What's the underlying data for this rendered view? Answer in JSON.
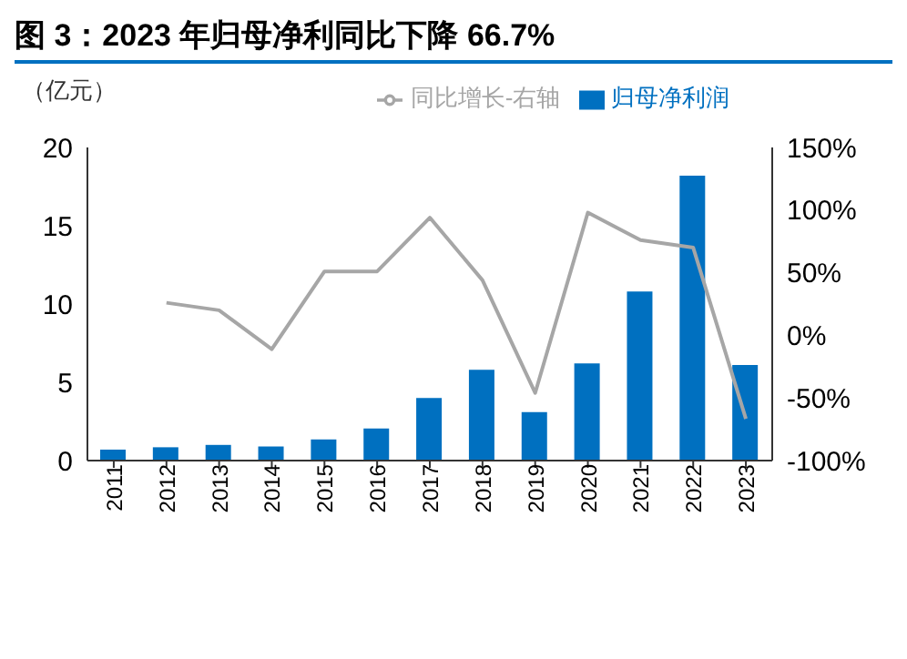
{
  "chart_data": {
    "type": "bar",
    "title": "图 3：2023 年归母净利同比下降 66.7%",
    "ylabel": "（亿元）",
    "categories": [
      "2011",
      "2012",
      "2013",
      "2014",
      "2015",
      "2016",
      "2017",
      "2018",
      "2019",
      "2020",
      "2021",
      "2022",
      "2023"
    ],
    "series": [
      {
        "name": "归母净利润",
        "color": "#0070c0",
        "values": [
          0.7,
          0.85,
          1.0,
          0.9,
          1.35,
          2.05,
          4.0,
          5.8,
          3.1,
          6.2,
          10.8,
          18.2,
          6.1
        ]
      },
      {
        "name": "同比增长-右轴",
        "type": "line",
        "axis": "y2",
        "color": "#a6a6a6",
        "values": [
          null,
          26,
          20,
          -11,
          51,
          51,
          94,
          44,
          -46,
          98,
          76,
          70,
          -66.7
        ]
      }
    ],
    "ylim": [
      0,
      20
    ],
    "yticks": [
      0,
      5,
      10,
      15,
      20
    ],
    "y2lim": [
      -100,
      150
    ],
    "y2ticks": [
      {
        "value": -100,
        "label": "-100%"
      },
      {
        "value": -50,
        "label": "-50%"
      },
      {
        "value": 0,
        "label": "0%"
      },
      {
        "value": 50,
        "label": "50%"
      },
      {
        "value": 100,
        "label": "100%"
      },
      {
        "value": 150,
        "label": "150%"
      }
    ],
    "grid": false,
    "legend": "top",
    "marker": "none"
  }
}
